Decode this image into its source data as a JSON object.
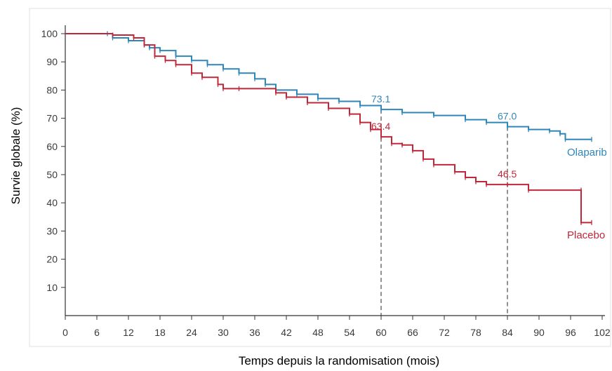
{
  "chart_data": {
    "type": "line",
    "xlabel": "Temps depuis la randomisation (mois)",
    "ylabel": "Survie globale (%)",
    "xlim": [
      0,
      102
    ],
    "ylim": [
      0,
      100
    ],
    "x_ticks": [
      0,
      6,
      12,
      18,
      24,
      30,
      36,
      42,
      48,
      54,
      60,
      66,
      72,
      78,
      84,
      90,
      96,
      102
    ],
    "x_tick_labels": [
      "0",
      "6",
      "12",
      "18",
      "24",
      "30",
      "36",
      "42",
      "48",
      "54",
      "60",
      "66",
      "72",
      "78",
      "84",
      "90",
      "96",
      "102"
    ],
    "y_ticks": [
      10,
      20,
      30,
      40,
      50,
      60,
      70,
      80,
      90,
      100
    ],
    "y_tick_labels": [
      "10",
      "20",
      "30",
      "40",
      "50",
      "60",
      "70",
      "80",
      "90",
      "100"
    ],
    "grid": false,
    "reference_lines_x": [
      60,
      84
    ],
    "series": [
      {
        "name": "Olaparib",
        "color": "#2f86b8",
        "x": [
          0,
          8,
          9,
          12,
          15,
          16,
          18,
          21,
          24,
          27,
          30,
          33,
          36,
          38,
          40,
          44,
          48,
          52,
          56,
          60,
          64,
          70,
          76,
          80,
          84,
          88,
          92,
          94,
          95,
          100
        ],
        "values": [
          100,
          100,
          98.5,
          97.5,
          96,
          95,
          94,
          92,
          90.5,
          89,
          87.5,
          86,
          84,
          82,
          80,
          78.5,
          77,
          76,
          74.5,
          73.1,
          72,
          71,
          69.5,
          68.5,
          67.0,
          66,
          65.5,
          64.5,
          62.5,
          62.5
        ]
      },
      {
        "name": "Placebo",
        "color": "#c0283a",
        "x": [
          0,
          9,
          13,
          15,
          17,
          19,
          21,
          24,
          26,
          29,
          30,
          33,
          40,
          42,
          46,
          50,
          54,
          56,
          58,
          60,
          62,
          64,
          66,
          68,
          70,
          74,
          76,
          78,
          80,
          84,
          88,
          98,
          98,
          100
        ],
        "values": [
          100,
          99.5,
          98.5,
          96,
          92,
          90.5,
          89,
          86,
          84.5,
          82,
          80.5,
          80.5,
          79,
          77.5,
          75.5,
          73.5,
          71.5,
          68.5,
          66,
          63.4,
          61,
          60.5,
          58.5,
          55.5,
          53.5,
          51,
          49,
          47.5,
          46.5,
          46.5,
          44.5,
          44.5,
          33,
          33
        ]
      }
    ],
    "series_labels": {
      "olaparib": "Olaparib",
      "placebo": "Placebo"
    },
    "annotations": [
      {
        "text": "73.1",
        "x": 60,
        "y": 73.1,
        "series": "Olaparib"
      },
      {
        "text": "67.0",
        "x": 84,
        "y": 67.0,
        "series": "Olaparib"
      },
      {
        "text": "63.4",
        "x": 60,
        "y": 63.4,
        "series": "Placebo"
      },
      {
        "text": "46.5",
        "x": 84,
        "y": 46.5,
        "series": "Placebo"
      }
    ]
  }
}
